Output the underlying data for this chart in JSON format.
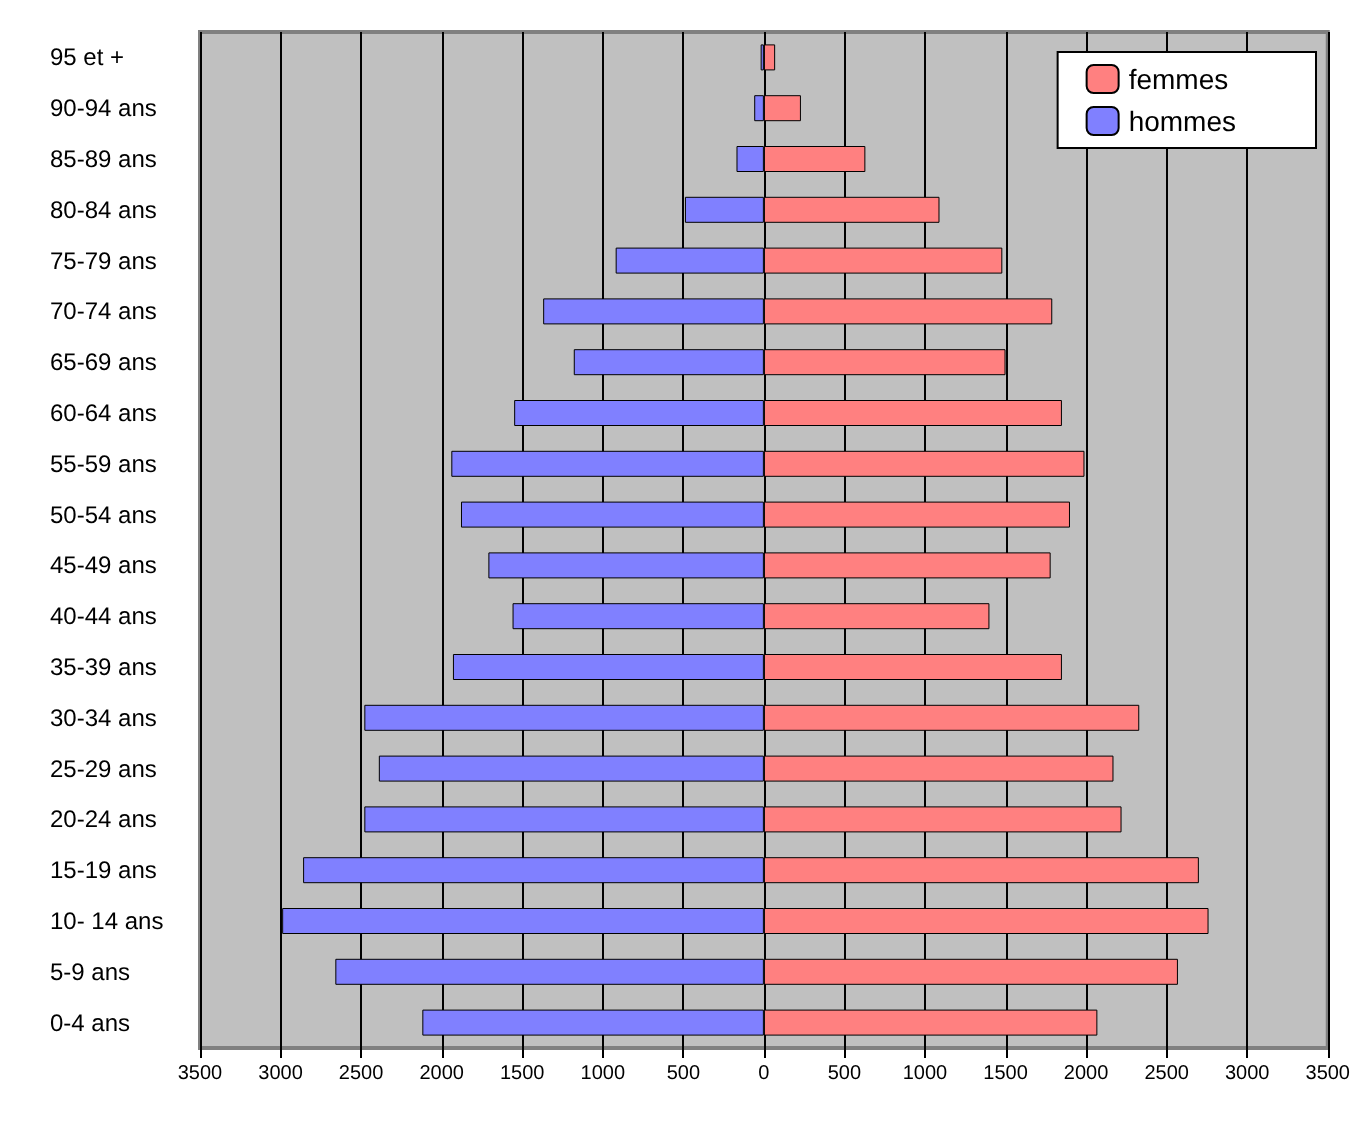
{
  "chart_data": {
    "type": "bar",
    "orientation": "horizontal",
    "categories": [
      "95 et +",
      "90-94 ans",
      "85-89 ans",
      "80-84 ans",
      "75-79 ans",
      "70-74 ans",
      "65-69 ans",
      "60-64 ans",
      "55-59 ans",
      "50-54 ans",
      "45-49 ans",
      "40-44 ans",
      "35-39 ans",
      "30-34 ans",
      "25-29 ans",
      "20-24 ans",
      "15-19 ans",
      "10- 14 ans",
      "5-9 ans",
      "0-4 ans"
    ],
    "series": [
      {
        "name": "femmes",
        "color": "#ff8080",
        "values": [
          70,
          230,
          630,
          1090,
          1480,
          1790,
          1500,
          1850,
          1990,
          1900,
          1780,
          1400,
          1850,
          2330,
          2170,
          2220,
          2700,
          2760,
          2570,
          2070
        ]
      },
      {
        "name": "hommes",
        "color": "#8080ff",
        "values": [
          -20,
          -60,
          -170,
          -490,
          -920,
          -1370,
          -1180,
          -1550,
          -1940,
          -1880,
          -1710,
          -1560,
          -1930,
          -2480,
          -2390,
          -2480,
          -2860,
          -2990,
          -2660,
          -2120
        ]
      }
    ],
    "xlim": [
      -3500,
      3500
    ],
    "xticks": [
      {
        "value": -3500,
        "label": "3500"
      },
      {
        "value": -3000,
        "label": "3000"
      },
      {
        "value": -2500,
        "label": "2500"
      },
      {
        "value": -2000,
        "label": "2000"
      },
      {
        "value": -1500,
        "label": "1500"
      },
      {
        "value": -1000,
        "label": "1000"
      },
      {
        "value": -500,
        "label": "500"
      },
      0,
      500,
      1000,
      1500,
      2000,
      2500,
      3000,
      3500
    ],
    "stacked": true,
    "grid": "x",
    "legend": "top right"
  }
}
